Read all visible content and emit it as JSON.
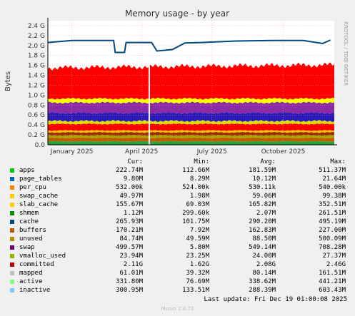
{
  "chart_data": {
    "type": "area",
    "title": "Memory usage - by year",
    "ylabel": "Bytes",
    "side_label": "RRDTOOL / TOBI OETIKER",
    "ylim": [
      0,
      2.5
    ],
    "yticks": [
      "0.0",
      "0.2 G",
      "0.4 G",
      "0.6 G",
      "0.8 G",
      "1.0 G",
      "1.2 G",
      "1.4 G",
      "1.6 G",
      "1.8 G",
      "2.0 G",
      "2.2 G",
      "2.4 G"
    ],
    "ytick_values": [
      0,
      0.2,
      0.4,
      0.6,
      0.8,
      1.0,
      1.2,
      1.4,
      1.6,
      1.8,
      2.0,
      2.2,
      2.4
    ],
    "xlim": [
      "2024-12-15",
      "2025-12-20"
    ],
    "xtick_labels": [
      "January 2025",
      "April 2025",
      "July 2025",
      "October 2025"
    ],
    "xtick_dates": [
      "2025-01-15",
      "2025-04-15",
      "2025-07-15",
      "2025-10-15"
    ],
    "grid": true,
    "legend_headers": [
      "Cur:",
      "Min:",
      "Avg:",
      "Max:"
    ],
    "series": [
      {
        "name": "apps",
        "color": "#00cc00",
        "cur": "222.74M",
        "min": "112.66M",
        "avg": "181.59M",
        "max": "511.37M",
        "level": 0.18
      },
      {
        "name": "page_tables",
        "color": "#0066b3",
        "cur": "9.80M",
        "min": "8.29M",
        "avg": "10.12M",
        "max": "21.64M",
        "level": 0.01
      },
      {
        "name": "per_cpu",
        "color": "#ff8000",
        "cur": "532.00k",
        "min": "524.00k",
        "avg": "530.11k",
        "max": "540.00k",
        "level": 0.001
      },
      {
        "name": "swap_cache",
        "color": "#ffcc00",
        "cur": "49.97M",
        "min": "1.98M",
        "avg": "59.06M",
        "max": "99.38M",
        "level": 0.06
      },
      {
        "name": "slab_cache",
        "color": "#ffcc00",
        "cur": "155.67M",
        "min": "69.03M",
        "avg": "165.82M",
        "max": "352.51M",
        "level": 0.17
      },
      {
        "name": "shmem",
        "color": "#008f00",
        "cur": "1.12M",
        "min": "299.60k",
        "avg": "2.07M",
        "max": "261.51M",
        "level": 0.002
      },
      {
        "name": "cache",
        "color": "#00487d",
        "cur": "265.93M",
        "min": "101.75M",
        "avg": "290.20M",
        "max": "495.19M",
        "level": 0.27
      },
      {
        "name": "buffers",
        "color": "#b35a00",
        "cur": "170.21M",
        "min": "7.92M",
        "avg": "162.83M",
        "max": "227.00M",
        "level": 0.16
      },
      {
        "name": "unused",
        "color": "#b38f00",
        "cur": "84.74M",
        "min": "49.59M",
        "avg": "88.50M",
        "max": "500.09M",
        "level": 0.09
      },
      {
        "name": "swap",
        "color": "#6b006b",
        "cur": "499.57M",
        "min": "5.80M",
        "avg": "549.14M",
        "max": "708.28M",
        "level": 0.5
      },
      {
        "name": "vmalloc_used",
        "color": "#8fb300",
        "cur": "23.94M",
        "min": "23.25M",
        "avg": "24.00M",
        "max": "27.37M",
        "level": 0.02
      },
      {
        "name": "committed",
        "color": "#b30000",
        "cur": "2.11G",
        "min": "1.62G",
        "avg": "2.08G",
        "max": "2.46G",
        "level": 2.1
      },
      {
        "name": "mapped",
        "color": "#bebebe",
        "cur": "61.01M",
        "min": "39.32M",
        "avg": "80.14M",
        "max": "161.51M",
        "level": 0.08
      },
      {
        "name": "active",
        "color": "#80ff80",
        "cur": "331.80M",
        "min": "76.69M",
        "avg": "338.62M",
        "max": "441.21M",
        "level": 0.33
      },
      {
        "name": "inactive",
        "color": "#80c9ff",
        "cur": "300.95M",
        "min": "133.51M",
        "avg": "288.39M",
        "max": "603.43M",
        "level": 0.3
      }
    ],
    "stack_render": [
      {
        "color": "#2aa43a",
        "top": 0.07
      },
      {
        "color": "#c25b00",
        "top": 0.14
      },
      {
        "color": "#a8a600",
        "top": 0.19
      },
      {
        "color": "#9a2b00",
        "top": 0.25
      },
      {
        "color": "#f2c200",
        "top": 0.29
      },
      {
        "color": "#ff0000",
        "top": 0.42
      },
      {
        "color": "#dddd00",
        "top": 0.48
      },
      {
        "color": "#2a1ab8",
        "top": 0.64
      },
      {
        "color": "#8a2ba8",
        "top": 0.85
      },
      {
        "color": "#ffff00",
        "top": 0.93
      },
      {
        "color": "#ff0000",
        "top": 1.55
      }
    ],
    "committed_line": [
      {
        "x": "2024-12-15",
        "y": 2.06
      },
      {
        "x": "2025-01-15",
        "y": 2.1
      },
      {
        "x": "2025-02-20",
        "y": 2.1
      },
      {
        "x": "2025-03-10",
        "y": 2.1
      },
      {
        "x": "2025-03-12",
        "y": 1.86
      },
      {
        "x": "2025-03-24",
        "y": 1.86
      },
      {
        "x": "2025-03-26",
        "y": 2.06
      },
      {
        "x": "2025-04-28",
        "y": 2.06
      },
      {
        "x": "2025-05-05",
        "y": 1.89
      },
      {
        "x": "2025-05-25",
        "y": 1.92
      },
      {
        "x": "2025-06-10",
        "y": 2.05
      },
      {
        "x": "2025-07-01",
        "y": 2.06
      },
      {
        "x": "2025-08-15",
        "y": 2.09
      },
      {
        "x": "2025-10-01",
        "y": 2.1
      },
      {
        "x": "2025-11-10",
        "y": 2.1
      },
      {
        "x": "2025-12-05",
        "y": 2.04
      },
      {
        "x": "2025-12-15",
        "y": 2.11
      }
    ]
  },
  "footer": {
    "last_update": "Last update: Fri Dec 19 01:00:08 2025",
    "munin": "Munin 2.0.73"
  }
}
